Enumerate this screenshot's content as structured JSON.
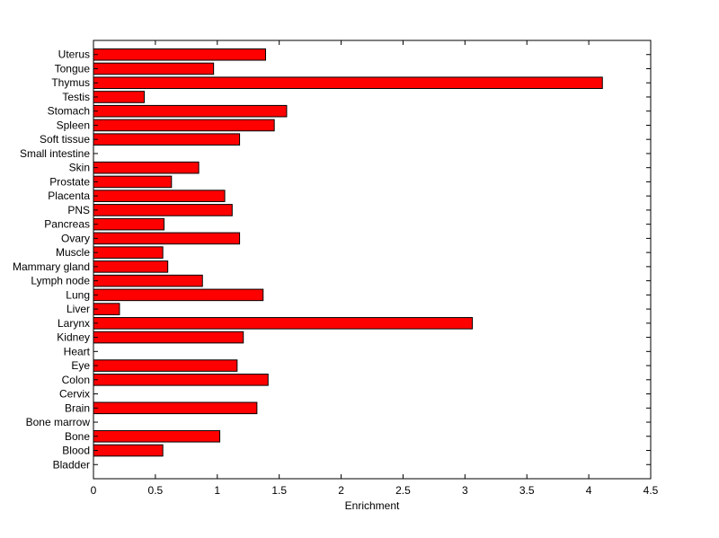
{
  "chart_data": {
    "type": "bar",
    "orientation": "horizontal",
    "title": "",
    "xlabel": "Enrichment",
    "ylabel": "",
    "xlim": [
      0,
      4.5
    ],
    "xticks": [
      0,
      0.5,
      1,
      1.5,
      2,
      2.5,
      3,
      3.5,
      4,
      4.5
    ],
    "xtick_labels": [
      "0",
      "0.5",
      "1",
      "1.5",
      "2",
      "2.5",
      "3",
      "3.5",
      "4",
      "4.5"
    ],
    "grid": false,
    "legend": "none",
    "bar_color": "#ff0000",
    "categories": [
      "Bladder",
      "Blood",
      "Bone",
      "Bone marrow",
      "Brain",
      "Cervix",
      "Colon",
      "Eye",
      "Heart",
      "Kidney",
      "Larynx",
      "Liver",
      "Lung",
      "Lymph node",
      "Mammary gland",
      "Muscle",
      "Ovary",
      "Pancreas",
      "PNS",
      "Placenta",
      "Prostate",
      "Skin",
      "Small intestine",
      "Soft tissue",
      "Spleen",
      "Stomach",
      "Testis",
      "Thymus",
      "Tongue",
      "Uterus"
    ],
    "values": [
      0,
      0.56,
      1.02,
      0,
      1.32,
      0,
      1.41,
      1.16,
      0,
      1.21,
      3.06,
      0.21,
      1.37,
      0.88,
      0.6,
      0.56,
      1.18,
      0.57,
      1.12,
      1.06,
      0.63,
      0.85,
      0,
      1.18,
      1.46,
      1.56,
      0.41,
      4.11,
      0.97,
      1.39
    ]
  }
}
